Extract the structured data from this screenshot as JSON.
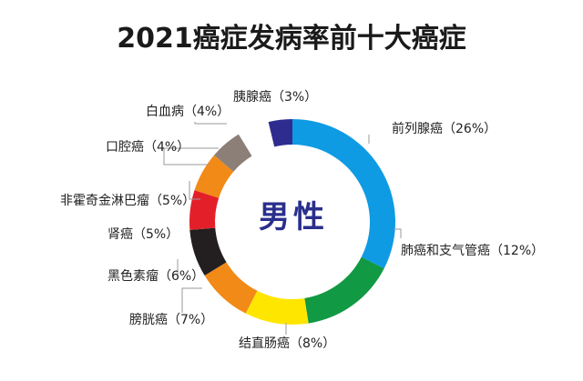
{
  "chart_data": {
    "type": "pie",
    "title": "2021癌症发病率前十大癌症",
    "center_label": "男性",
    "center_color": "#2a2f8c",
    "series": [
      {
        "name": "前列腺癌",
        "label": "前列腺癌（26%）",
        "value": 26,
        "color": "#0f9be3"
      },
      {
        "name": "肺癌和支气管癌",
        "label": "肺癌和支气管癌（12%）",
        "value": 12,
        "color": "#119944"
      },
      {
        "name": "结直肠癌",
        "label": "结直肠癌（8%）",
        "value": 8,
        "color": "#ffe600"
      },
      {
        "name": "膀胱癌",
        "label": "膀胱癌（7%）",
        "value": 7,
        "color": "#f28a17"
      },
      {
        "name": "黑色素瘤",
        "label": "黑色素瘤（6%）",
        "value": 6,
        "color": "#231f20"
      },
      {
        "name": "肾癌",
        "label": "肾癌（5%）",
        "value": 5,
        "color": "#e3202a"
      },
      {
        "name": "非霍奇金淋巴瘤",
        "label": "非霍奇金淋巴瘤（5%）",
        "value": 5,
        "color": "#f28a17"
      },
      {
        "name": "口腔癌",
        "label": "口腔癌（4%）",
        "value": 4,
        "color": "#8c7f78"
      },
      {
        "name": "白血病",
        "label": "白血病（4%）",
        "value": 4,
        "color": "#ffffff"
      },
      {
        "name": "胰腺癌",
        "label": "胰腺癌（3%）",
        "value": 3,
        "color": "#2e2c8f"
      }
    ]
  }
}
